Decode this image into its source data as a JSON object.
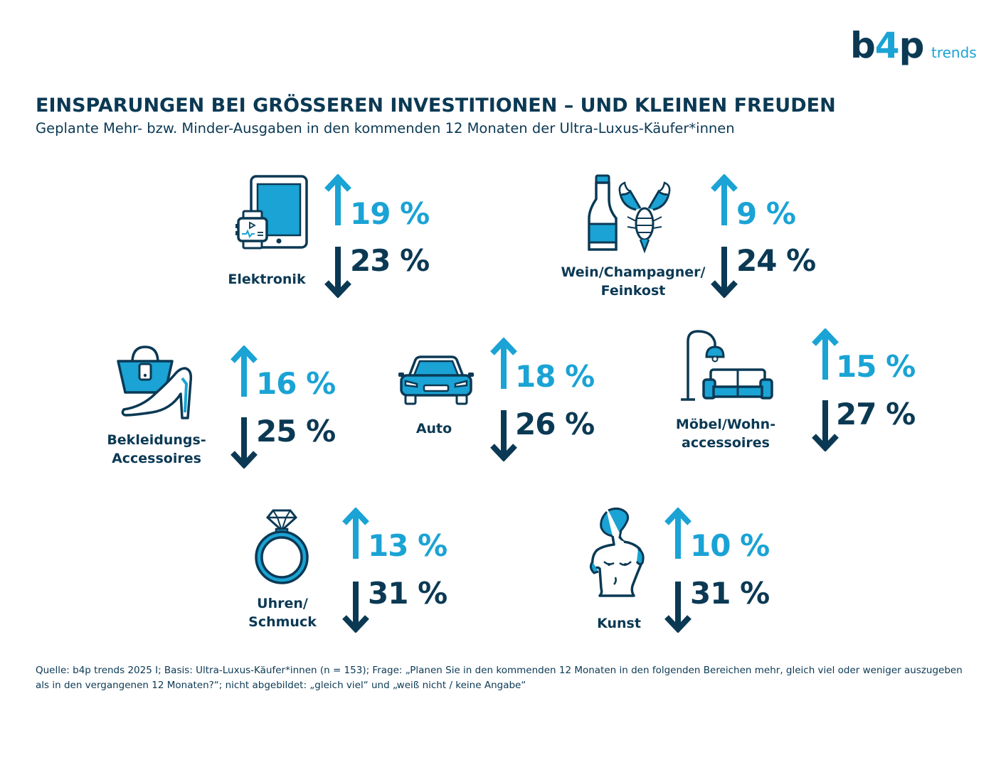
{
  "logo": {
    "brand_b": "b",
    "brand_4": "4",
    "brand_p": "p",
    "suffix": "trends"
  },
  "title": "EINSPARUNGEN BEI GRÖSSEREN INVESTITIONEN – UND KLEINEN FREUDEN",
  "subtitle": "Geplante Mehr- bzw. Minder-Ausgaben in den kommenden 12 Monaten der Ultra-Luxus-Käufer*innen",
  "footer": "Quelle: b4p trends 2025 I; Basis: Ultra-Luxus-Käufer*innen (n = 153); Frage: „Planen Sie in den kommenden 12 Monaten in den folgenden Bereichen mehr, gleich viel oder weniger auszugeben als in den vergangenen 12 Monaten?“; nicht abgebildet: „gleich viel“ und „weiß nicht / keine Angabe“",
  "colors": {
    "up": "#1aa3d4",
    "down": "#0b3954"
  },
  "chart_data": {
    "type": "infographic",
    "unit": "%",
    "categories": [
      "Elektronik",
      "Wein/Champagner/ Feinkost",
      "Bekleidungs-Accessoires",
      "Auto",
      "Möbel/Wohn-accessoires",
      "Uhren/ Schmuck",
      "Kunst"
    ],
    "items": [
      {
        "label_lines": [
          "Elektronik"
        ],
        "icon": "tablet-smartwatch-icon",
        "up": 19,
        "down": 23,
        "up_text": "19 %",
        "down_text": "23 %"
      },
      {
        "label_lines": [
          "Wein/Champagner/",
          "Feinkost"
        ],
        "icon": "wine-bottle-lobster-icon",
        "up": 9,
        "down": 24,
        "up_text": "9 %",
        "down_text": "24 %"
      },
      {
        "label_lines": [
          "Bekleidungs-",
          "Accessoires"
        ],
        "icon": "handbag-high-heel-icon",
        "up": 16,
        "down": 25,
        "up_text": "16 %",
        "down_text": "25 %"
      },
      {
        "label_lines": [
          "Auto"
        ],
        "icon": "car-icon",
        "up": 18,
        "down": 26,
        "up_text": "18 %",
        "down_text": "26 %"
      },
      {
        "label_lines": [
          "Möbel/Wohn-",
          "accessoires"
        ],
        "icon": "lamp-sofa-icon",
        "up": 15,
        "down": 27,
        "up_text": "15 %",
        "down_text": "27 %"
      },
      {
        "label_lines": [
          "Uhren/",
          "Schmuck"
        ],
        "icon": "diamond-ring-icon",
        "up": 13,
        "down": 31,
        "up_text": "13 %",
        "down_text": "31 %"
      },
      {
        "label_lines": [
          "Kunst"
        ],
        "icon": "statue-bust-icon",
        "up": 10,
        "down": 31,
        "up_text": "10 %",
        "down_text": "31 %"
      }
    ]
  }
}
